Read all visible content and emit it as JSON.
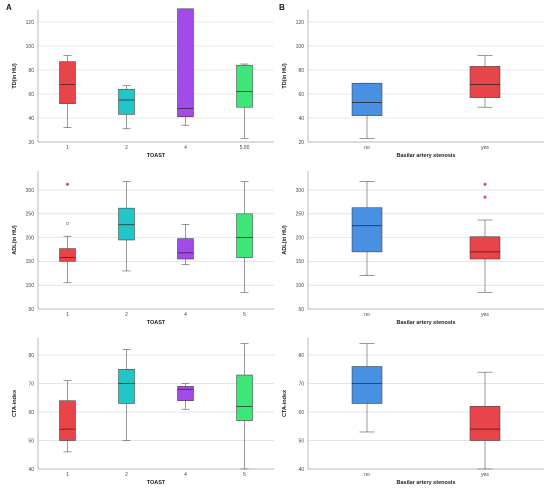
{
  "panel_labels": [
    "A",
    "B"
  ],
  "chart_data": [
    {
      "type": "box",
      "panel": "A",
      "xlabel": "TOAST",
      "ylabel": "TD(in HU)",
      "ylim": [
        20,
        130
      ],
      "yticks": [
        20,
        40,
        60,
        80,
        100,
        120
      ],
      "categories": [
        "1",
        "2",
        "4",
        "5.00"
      ],
      "colors": [
        "#e8454a",
        "#22c6c6",
        "#a24be8",
        "#3ee67a"
      ],
      "boxes": [
        {
          "min": 32,
          "q1": 52,
          "median": 68,
          "q3": 87,
          "max": 92,
          "outliers": []
        },
        {
          "min": 31,
          "q1": 43,
          "median": 55,
          "q3": 64,
          "max": 67,
          "outliers": []
        },
        {
          "min": 34,
          "q1": 41,
          "median": 48,
          "q3": 131,
          "max": 131,
          "outliers": []
        },
        {
          "min": 23,
          "q1": 49,
          "median": 62,
          "q3": 84,
          "max": 85,
          "outliers": []
        }
      ]
    },
    {
      "type": "box",
      "panel": "B",
      "xlabel": "Basilar artery stenosis",
      "ylabel": "TD(in HU)",
      "ylim": [
        20,
        130
      ],
      "yticks": [
        20,
        40,
        60,
        80,
        100,
        120
      ],
      "categories": [
        "no",
        "yes"
      ],
      "colors": [
        "#4a90e2",
        "#e8454a"
      ],
      "boxes": [
        {
          "min": 23,
          "q1": 42,
          "median": 53,
          "q3": 69,
          "max": 69,
          "outliers": []
        },
        {
          "min": 49,
          "q1": 57,
          "median": 68,
          "q3": 83,
          "max": 92,
          "outliers": []
        }
      ]
    },
    {
      "type": "box",
      "panel": "A",
      "xlabel": "TOAST",
      "ylabel": "ADL(in HU)",
      "ylim": [
        50,
        340
      ],
      "yticks": [
        50,
        100,
        150,
        200,
        250,
        300
      ],
      "categories": [
        "1",
        "2",
        "4",
        "5"
      ],
      "colors": [
        "#e8454a",
        "#22c6c6",
        "#a24be8",
        "#3ee67a"
      ],
      "boxes": [
        {
          "min": 105,
          "q1": 150,
          "median": 158,
          "q3": 177,
          "max": 203,
          "outliers": [
            230,
            312
          ]
        },
        {
          "min": 130,
          "q1": 195,
          "median": 227,
          "q3": 262,
          "max": 318,
          "outliers": []
        },
        {
          "min": 143,
          "q1": 155,
          "median": 168,
          "q3": 198,
          "max": 228,
          "outliers": []
        },
        {
          "min": 85,
          "q1": 158,
          "median": 200,
          "q3": 250,
          "max": 318,
          "outliers": []
        }
      ]
    },
    {
      "type": "box",
      "panel": "B",
      "xlabel": "Basilar artery stenosis",
      "ylabel": "ADL(in HU)",
      "ylim": [
        50,
        340
      ],
      "yticks": [
        50,
        100,
        150,
        200,
        250,
        300
      ],
      "categories": [
        "no",
        "yes"
      ],
      "colors": [
        "#4a90e2",
        "#e8454a"
      ],
      "boxes": [
        {
          "min": 120,
          "q1": 170,
          "median": 225,
          "q3": 263,
          "max": 318,
          "outliers": []
        },
        {
          "min": 85,
          "q1": 155,
          "median": 170,
          "q3": 202,
          "max": 237,
          "outliers": [
            285,
            312
          ]
        }
      ]
    },
    {
      "type": "box",
      "panel": "A",
      "xlabel": "TOAST",
      "ylabel": "CTA-index",
      "ylim": [
        40,
        86
      ],
      "yticks": [
        40,
        50,
        60,
        70,
        80
      ],
      "categories": [
        "1",
        "2",
        "4",
        "5"
      ],
      "colors": [
        "#e8454a",
        "#22c6c6",
        "#a24be8",
        "#3ee67a"
      ],
      "boxes": [
        {
          "min": 46,
          "q1": 50,
          "median": 54,
          "q3": 64,
          "max": 71,
          "outliers": []
        },
        {
          "min": 50,
          "q1": 63,
          "median": 70,
          "q3": 75,
          "max": 82,
          "outliers": []
        },
        {
          "min": 61,
          "q1": 64,
          "median": 68,
          "q3": 69,
          "max": 70,
          "outliers": []
        },
        {
          "min": 40,
          "q1": 57,
          "median": 62,
          "q3": 73,
          "max": 84,
          "outliers": []
        }
      ]
    },
    {
      "type": "box",
      "panel": "B",
      "xlabel": "Basilar artery stenosis",
      "ylabel": "CTA-index",
      "ylim": [
        40,
        86
      ],
      "yticks": [
        40,
        50,
        60,
        70,
        80
      ],
      "categories": [
        "no",
        "yes"
      ],
      "colors": [
        "#4a90e2",
        "#e8454a"
      ],
      "boxes": [
        {
          "min": 53,
          "q1": 63,
          "median": 70,
          "q3": 76,
          "max": 84,
          "outliers": []
        },
        {
          "min": 40,
          "q1": 50,
          "median": 54,
          "q3": 62,
          "max": 74,
          "outliers": []
        }
      ]
    }
  ]
}
